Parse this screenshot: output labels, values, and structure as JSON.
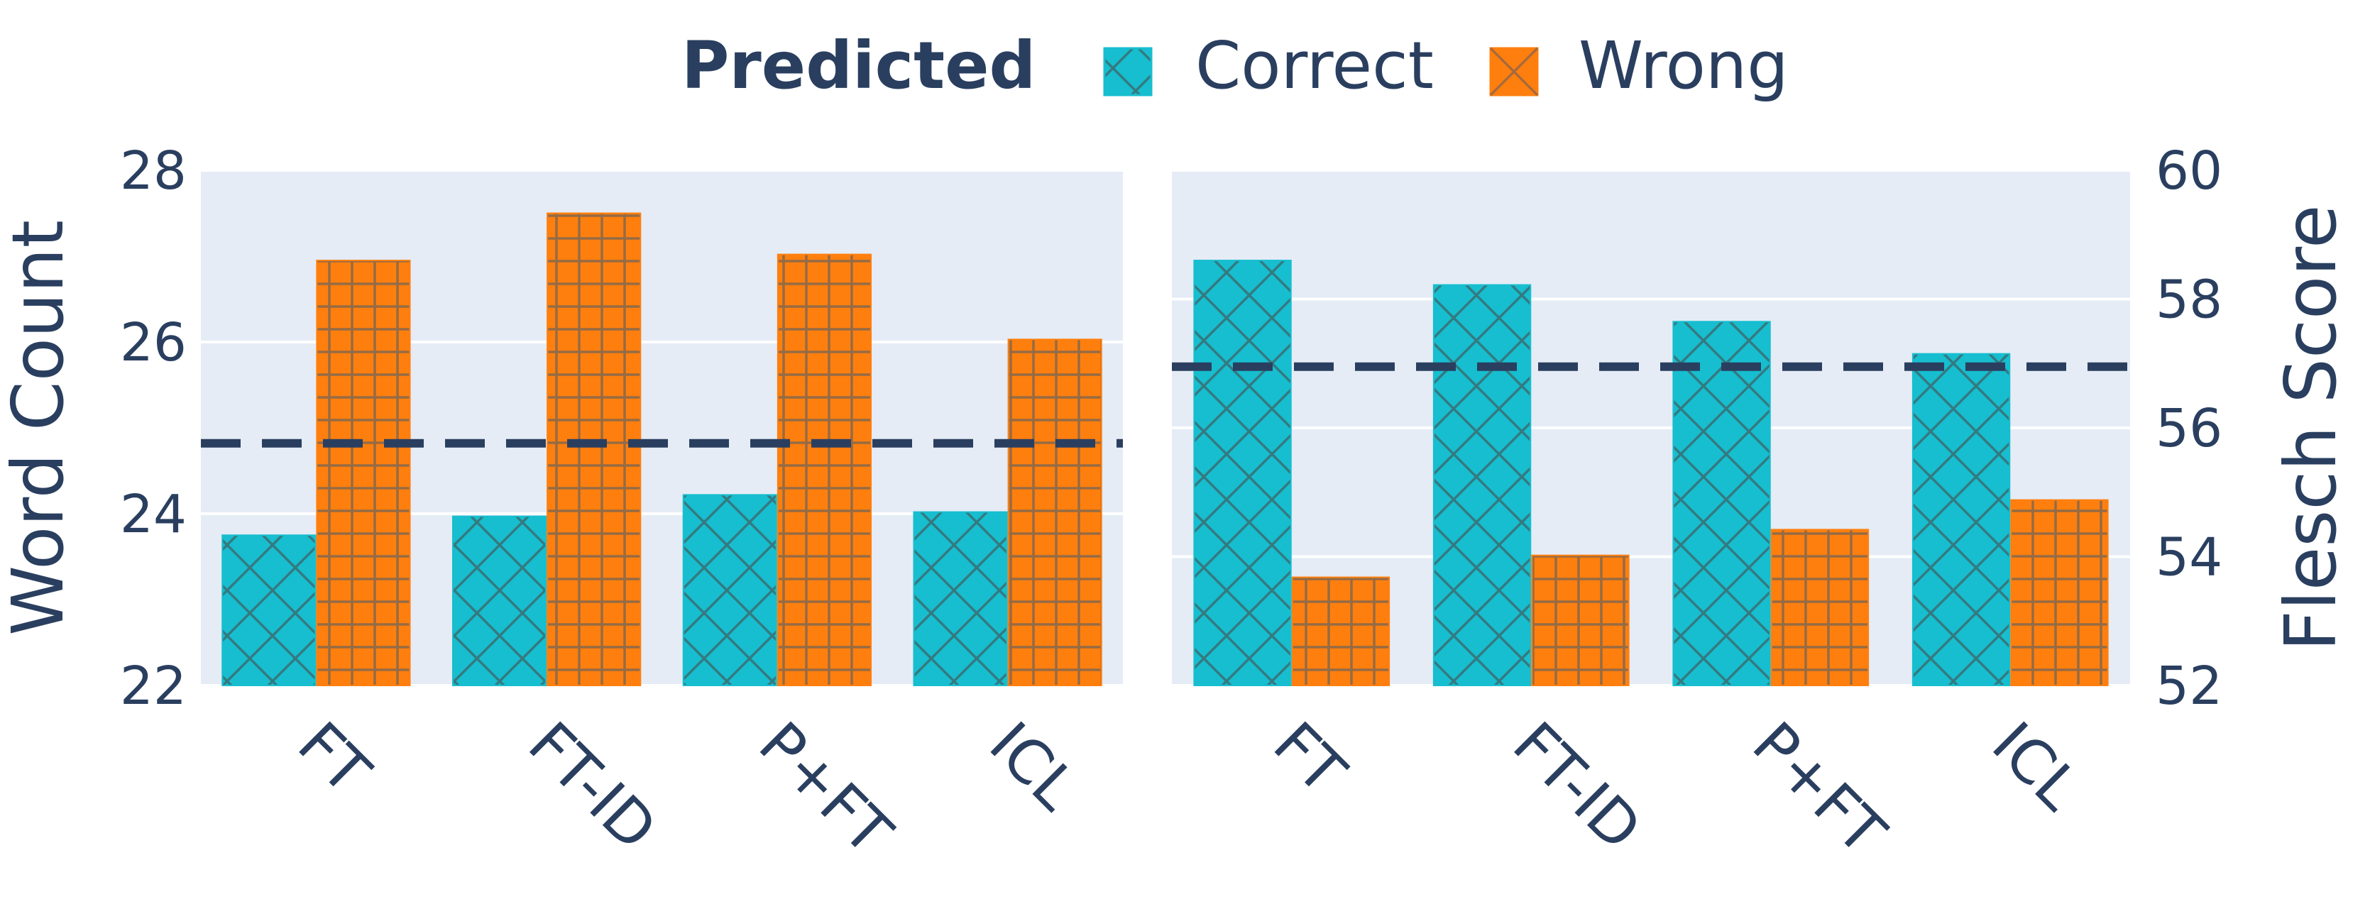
{
  "legend": {
    "title": "Predicted",
    "entries": [
      {
        "name": "Correct",
        "color": "#17becf",
        "pattern": "x-hatch"
      },
      {
        "name": "Wrong",
        "color": "#ff7f0e",
        "pattern": "grid-hatch"
      }
    ],
    "placement": "top-center"
  },
  "colors": {
    "plot_background": "#e5ecf6",
    "gridline": "#ffffff",
    "text": "#2a3f5f",
    "correct": "#17becf",
    "wrong": "#ff7f0e",
    "reference_line": "#2a3f5f"
  },
  "chart_data": [
    {
      "type": "bar",
      "categories": [
        "FT",
        "FT-ID",
        "P+FT",
        "ICL"
      ],
      "series": [
        {
          "name": "Correct",
          "values": [
            23.75,
            23.97,
            24.22,
            24.02
          ]
        },
        {
          "name": "Wrong",
          "values": [
            26.95,
            27.5,
            27.02,
            26.03
          ]
        }
      ],
      "ylabel": "Word Count",
      "ylim": [
        22,
        28
      ],
      "yticks": [
        22,
        24,
        26,
        28
      ],
      "y_axis_side": "left",
      "reference_line": {
        "y": 24.82,
        "style": "dashed"
      },
      "grid": true
    },
    {
      "type": "bar",
      "categories": [
        "FT",
        "FT-ID",
        "P+FT",
        "ICL"
      ],
      "series": [
        {
          "name": "Correct",
          "values": [
            58.6,
            58.22,
            57.65,
            57.15
          ]
        },
        {
          "name": "Wrong",
          "values": [
            53.68,
            54.02,
            54.42,
            54.88
          ]
        }
      ],
      "ylabel": "Flesch Score",
      "ylim": [
        52,
        60
      ],
      "yticks": [
        52,
        54,
        56,
        58,
        60
      ],
      "y_axis_side": "right",
      "reference_line": {
        "y": 56.95,
        "style": "dashed"
      },
      "grid": true
    }
  ]
}
